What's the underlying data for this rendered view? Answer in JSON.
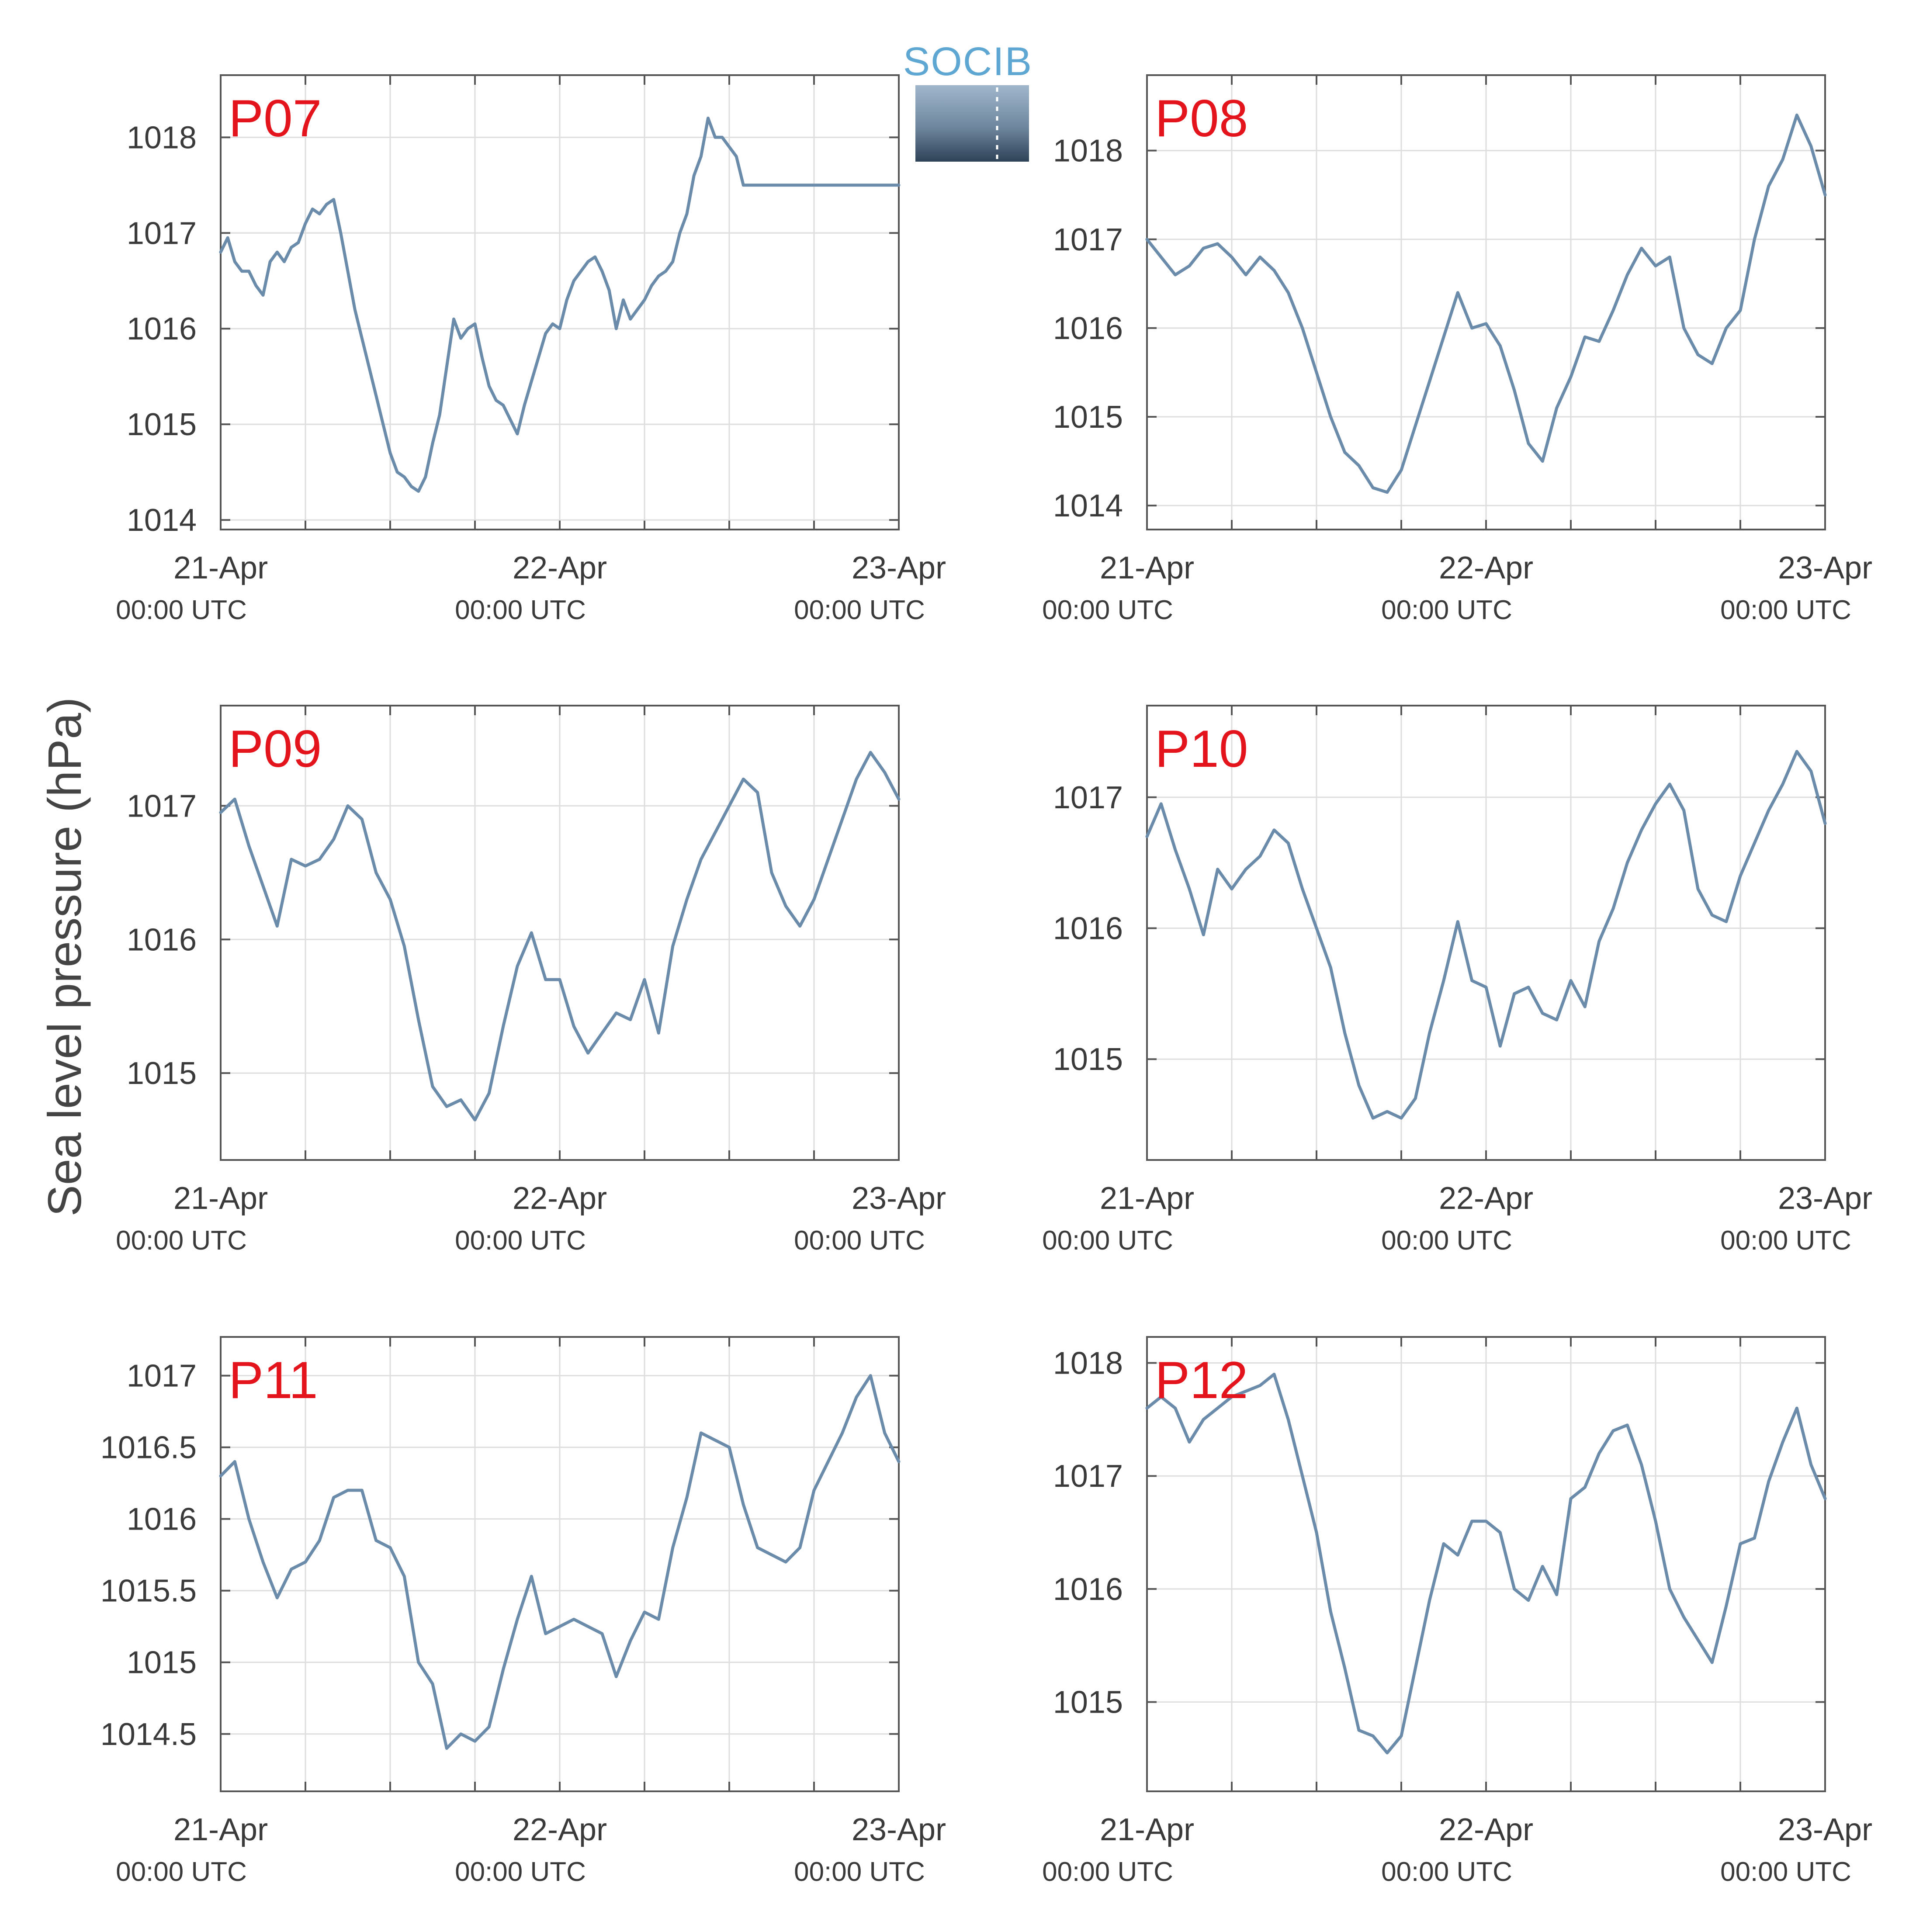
{
  "figure": {
    "ylabel": "Sea level pressure (hPa)",
    "logo_text": "SOCIB",
    "series_color": "#6b8bab",
    "label_color": "#e3141c"
  },
  "chart_data": [
    {
      "type": "line",
      "label": "P07",
      "x_ticks": [
        "21-Apr",
        "22-Apr",
        "23-Apr"
      ],
      "x_tick_sublabels": [
        "00:00 UTC",
        "00:00 UTC",
        "00:00 UTC"
      ],
      "xlim": [
        0,
        48
      ],
      "ylim": [
        1013.9,
        1018.65
      ],
      "y_ticks": [
        1014,
        1015,
        1016,
        1017,
        1018
      ],
      "x": [
        0,
        0.5,
        1,
        1.5,
        2,
        2.5,
        3,
        3.5,
        4,
        4.5,
        5,
        5.5,
        6,
        6.5,
        7,
        7.5,
        8,
        8.5,
        9,
        9.5,
        10,
        10.5,
        11,
        11.5,
        12,
        12.5,
        13,
        13.5,
        14,
        14.5,
        15,
        15.5,
        16,
        16.5,
        17,
        17.5,
        18,
        18.5,
        19,
        19.5,
        20,
        20.5,
        21,
        21.5,
        22,
        22.5,
        23,
        23.5,
        24,
        24.5,
        25,
        25.5,
        26,
        26.5,
        27,
        27.5,
        28,
        28.5,
        29,
        29.5,
        30,
        30.5,
        31,
        31.5,
        32,
        32.5,
        33,
        33.5,
        34,
        34.5,
        35,
        35.5,
        36,
        36.5,
        37,
        37.5,
        38,
        38.5,
        39,
        39.5,
        40,
        40.5,
        41,
        41.5,
        42,
        42.5,
        43,
        43.5,
        44,
        44.5,
        45,
        45.5,
        46,
        46.5,
        47,
        47.5,
        48
      ],
      "values": [
        1016.8,
        1016.95,
        1016.7,
        1016.6,
        1016.6,
        1016.45,
        1016.35,
        1016.7,
        1016.8,
        1016.7,
        1016.85,
        1016.9,
        1017.1,
        1017.25,
        1017.2,
        1017.3,
        1017.35,
        1017.0,
        1016.6,
        1016.2,
        1015.9,
        1015.6,
        1015.3,
        1015.0,
        1014.7,
        1014.5,
        1014.45,
        1014.35,
        1014.3,
        1014.45,
        1014.8,
        1015.1,
        1015.6,
        1016.1,
        1015.9,
        1016.0,
        1016.05,
        1015.7,
        1015.4,
        1015.25,
        1015.2,
        1015.05,
        1014.9,
        1015.2,
        1015.45,
        1015.7,
        1015.95,
        1016.05,
        1016.0,
        1016.3,
        1016.5,
        1016.6,
        1016.7,
        1016.75,
        1016.6,
        1016.4,
        1016.0,
        1016.3,
        1016.1,
        1016.2,
        1016.3,
        1016.45,
        1016.55,
        1016.6,
        1016.7,
        1017.0,
        1017.2,
        1017.6,
        1017.8,
        1018.2,
        1018.0,
        1018.0,
        1017.9,
        1017.8,
        1017.5,
        1017.5,
        1017.5,
        1017.5,
        1017.5,
        1017.5,
        1017.5,
        1017.5,
        1017.5,
        1017.5,
        1017.5,
        1017.5,
        1017.5,
        1017.5,
        1017.5,
        1017.5,
        1017.5,
        1017.5,
        1017.5,
        1017.5,
        1017.5,
        1017.5,
        1017.5
      ]
    },
    {
      "type": "line",
      "label": "P08",
      "x_ticks": [
        "21-Apr",
        "22-Apr",
        "23-Apr"
      ],
      "x_tick_sublabels": [
        "00:00 UTC",
        "00:00 UTC",
        "00:00 UTC"
      ],
      "xlim": [
        0,
        48
      ],
      "ylim": [
        1013.73,
        1018.85
      ],
      "y_ticks": [
        1014,
        1015,
        1016,
        1017,
        1018
      ],
      "x": [
        0,
        1,
        2,
        3,
        4,
        5,
        6,
        7,
        8,
        9,
        10,
        11,
        12,
        13,
        14,
        15,
        16,
        17,
        18,
        19,
        20,
        21,
        22,
        23,
        24,
        25,
        26,
        27,
        28,
        29,
        30,
        31,
        32,
        33,
        34,
        35,
        36,
        37,
        38,
        39,
        40,
        41,
        42,
        43,
        44,
        45,
        46,
        47,
        48
      ],
      "values": [
        1017.0,
        1016.8,
        1016.6,
        1016.7,
        1016.9,
        1016.95,
        1016.8,
        1016.6,
        1016.8,
        1016.65,
        1016.4,
        1016.0,
        1015.5,
        1015.0,
        1014.6,
        1014.45,
        1014.2,
        1014.15,
        1014.4,
        1014.9,
        1015.4,
        1015.9,
        1016.4,
        1016.0,
        1016.05,
        1015.8,
        1015.3,
        1014.7,
        1014.5,
        1015.1,
        1015.45,
        1015.9,
        1015.85,
        1016.2,
        1016.6,
        1016.9,
        1016.7,
        1016.8,
        1016.0,
        1015.7,
        1015.6,
        1016.0,
        1016.2,
        1017.0,
        1017.6,
        1017.9,
        1018.4,
        1018.05,
        1017.5
      ]
    },
    {
      "type": "line",
      "label": "P09",
      "x_ticks": [
        "21-Apr",
        "22-Apr",
        "23-Apr"
      ],
      "x_tick_sublabels": [
        "00:00 UTC",
        "00:00 UTC",
        "00:00 UTC"
      ],
      "xlim": [
        0,
        48
      ],
      "ylim": [
        1014.35,
        1017.75
      ],
      "y_ticks": [
        1015,
        1016,
        1017
      ],
      "x": [
        0,
        1,
        2,
        3,
        4,
        5,
        6,
        7,
        8,
        9,
        10,
        11,
        12,
        13,
        14,
        15,
        16,
        17,
        18,
        19,
        20,
        21,
        22,
        23,
        24,
        25,
        26,
        27,
        28,
        29,
        30,
        31,
        32,
        33,
        34,
        35,
        36,
        37,
        38,
        39,
        40,
        41,
        42,
        43,
        44,
        45,
        46,
        47,
        48
      ],
      "values": [
        1016.95,
        1017.05,
        1016.7,
        1016.4,
        1016.1,
        1016.6,
        1016.55,
        1016.6,
        1016.75,
        1017.0,
        1016.9,
        1016.5,
        1016.3,
        1015.95,
        1015.4,
        1014.9,
        1014.75,
        1014.8,
        1014.65,
        1014.85,
        1015.35,
        1015.8,
        1016.05,
        1015.7,
        1015.7,
        1015.35,
        1015.15,
        1015.3,
        1015.45,
        1015.4,
        1015.7,
        1015.3,
        1015.95,
        1016.3,
        1016.6,
        1016.8,
        1017.0,
        1017.2,
        1017.1,
        1016.5,
        1016.25,
        1016.1,
        1016.3,
        1016.6,
        1016.9,
        1017.2,
        1017.4,
        1017.25,
        1017.05
      ]
    },
    {
      "type": "line",
      "label": "P10",
      "x_ticks": [
        "21-Apr",
        "22-Apr",
        "23-Apr"
      ],
      "x_tick_sublabels": [
        "00:00 UTC",
        "00:00 UTC",
        "00:00 UTC"
      ],
      "xlim": [
        0,
        48
      ],
      "ylim": [
        1014.23,
        1017.7
      ],
      "y_ticks": [
        1015,
        1016,
        1017
      ],
      "x": [
        0,
        1,
        2,
        3,
        4,
        5,
        6,
        7,
        8,
        9,
        10,
        11,
        12,
        13,
        14,
        15,
        16,
        17,
        18,
        19,
        20,
        21,
        22,
        23,
        24,
        25,
        26,
        27,
        28,
        29,
        30,
        31,
        32,
        33,
        34,
        35,
        36,
        37,
        38,
        39,
        40,
        41,
        42,
        43,
        44,
        45,
        46,
        47,
        48
      ],
      "values": [
        1016.7,
        1016.95,
        1016.6,
        1016.3,
        1015.95,
        1016.45,
        1016.3,
        1016.45,
        1016.55,
        1016.75,
        1016.65,
        1016.3,
        1016.0,
        1015.7,
        1015.2,
        1014.8,
        1014.55,
        1014.6,
        1014.55,
        1014.7,
        1015.2,
        1015.6,
        1016.05,
        1015.6,
        1015.55,
        1015.1,
        1015.5,
        1015.55,
        1015.35,
        1015.3,
        1015.6,
        1015.4,
        1015.9,
        1016.15,
        1016.5,
        1016.75,
        1016.95,
        1017.1,
        1016.9,
        1016.3,
        1016.1,
        1016.05,
        1016.4,
        1016.65,
        1016.9,
        1017.1,
        1017.35,
        1017.2,
        1016.8
      ]
    },
    {
      "type": "line",
      "label": "P11",
      "x_ticks": [
        "21-Apr",
        "22-Apr",
        "23-Apr"
      ],
      "x_tick_sublabels": [
        "00:00 UTC",
        "00:00 UTC",
        "00:00 UTC"
      ],
      "xlim": [
        0,
        48
      ],
      "ylim": [
        1014.1,
        1017.27
      ],
      "y_ticks": [
        1014.5,
        1015,
        1015.5,
        1016,
        1016.5,
        1017
      ],
      "x": [
        0,
        1,
        2,
        3,
        4,
        5,
        6,
        7,
        8,
        9,
        10,
        11,
        12,
        13,
        14,
        15,
        16,
        17,
        18,
        19,
        20,
        21,
        22,
        23,
        24,
        25,
        26,
        27,
        28,
        29,
        30,
        31,
        32,
        33,
        34,
        35,
        36,
        37,
        38,
        39,
        40,
        41,
        42,
        43,
        44,
        45,
        46,
        47,
        48
      ],
      "values": [
        1016.3,
        1016.4,
        1016.0,
        1015.7,
        1015.45,
        1015.65,
        1015.7,
        1015.85,
        1016.15,
        1016.2,
        1016.2,
        1015.85,
        1015.8,
        1015.6,
        1015.0,
        1014.85,
        1014.4,
        1014.5,
        1014.45,
        1014.55,
        1014.95,
        1015.3,
        1015.6,
        1015.2,
        1015.25,
        1015.3,
        1015.25,
        1015.2,
        1014.9,
        1015.15,
        1015.35,
        1015.3,
        1015.8,
        1016.15,
        1016.6,
        1016.55,
        1016.5,
        1016.1,
        1015.8,
        1015.75,
        1015.7,
        1015.8,
        1016.2,
        1016.4,
        1016.6,
        1016.85,
        1017.0,
        1016.6,
        1016.4
      ]
    },
    {
      "type": "line",
      "label": "P12",
      "x_ticks": [
        "21-Apr",
        "22-Apr",
        "23-Apr"
      ],
      "x_tick_sublabels": [
        "00:00 UTC",
        "00:00 UTC",
        "00:00 UTC"
      ],
      "xlim": [
        0,
        48
      ],
      "ylim": [
        1014.21,
        1018.23
      ],
      "y_ticks": [
        1015,
        1016,
        1017,
        1018
      ],
      "x": [
        0,
        1,
        2,
        3,
        4,
        5,
        6,
        7,
        8,
        9,
        10,
        11,
        12,
        13,
        14,
        15,
        16,
        17,
        18,
        19,
        20,
        21,
        22,
        23,
        24,
        25,
        26,
        27,
        28,
        29,
        30,
        31,
        32,
        33,
        34,
        35,
        36,
        37,
        38,
        39,
        40,
        41,
        42,
        43,
        44,
        45,
        46,
        47,
        48
      ],
      "values": [
        1017.6,
        1017.7,
        1017.6,
        1017.3,
        1017.5,
        1017.6,
        1017.7,
        1017.75,
        1017.8,
        1017.9,
        1017.5,
        1017.0,
        1016.5,
        1015.8,
        1015.3,
        1014.75,
        1014.7,
        1014.55,
        1014.7,
        1015.3,
        1015.9,
        1016.4,
        1016.3,
        1016.6,
        1016.6,
        1016.5,
        1016.0,
        1015.9,
        1016.2,
        1015.95,
        1016.8,
        1016.9,
        1017.2,
        1017.4,
        1017.45,
        1017.1,
        1016.6,
        1016.0,
        1015.75,
        1015.55,
        1015.35,
        1015.85,
        1016.4,
        1016.45,
        1016.95,
        1017.3,
        1017.6,
        1017.1,
        1016.8
      ]
    }
  ]
}
